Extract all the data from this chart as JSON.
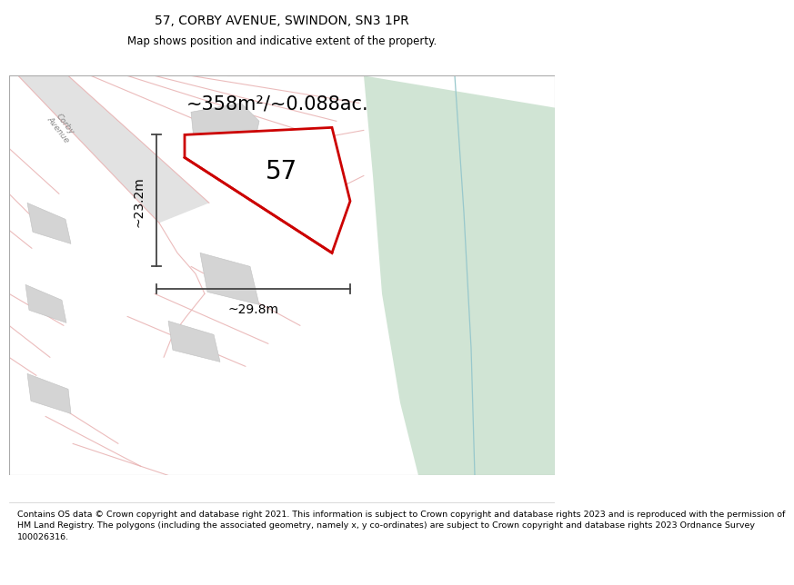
{
  "title": "57, CORBY AVENUE, SWINDON, SN3 1PR",
  "subtitle": "Map shows position and indicative extent of the property.",
  "area_label": "~358m²/~0.088ac.",
  "property_number": "57",
  "dim_width": "~29.8m",
  "dim_height": "~23.2m",
  "footer_lines": [
    "Contains OS data © Crown copyright and database right 2021. This information is subject to Crown copyright and database rights 2023 and is reproduced with the permission of",
    "HM Land Registry. The polygons (including the associated geometry, namely x, y co-ordinates) are subject to Crown copyright and database rights 2023 Ordnance Survey",
    "100026316."
  ],
  "bg_color": "#f0f0f0",
  "green_color": "#d0e4d4",
  "road_fill_color": "#e2e2e2",
  "pink_color": "#e8b0b0",
  "red_color": "#cc0000",
  "red_lw": 2.0,
  "dim_color": "#444444",
  "blue_color": "#98c8cc",
  "title_fs": 10,
  "subtitle_fs": 8.5,
  "area_fs": 15,
  "num_fs": 20,
  "dim_fs": 10,
  "foot_fs": 6.8
}
